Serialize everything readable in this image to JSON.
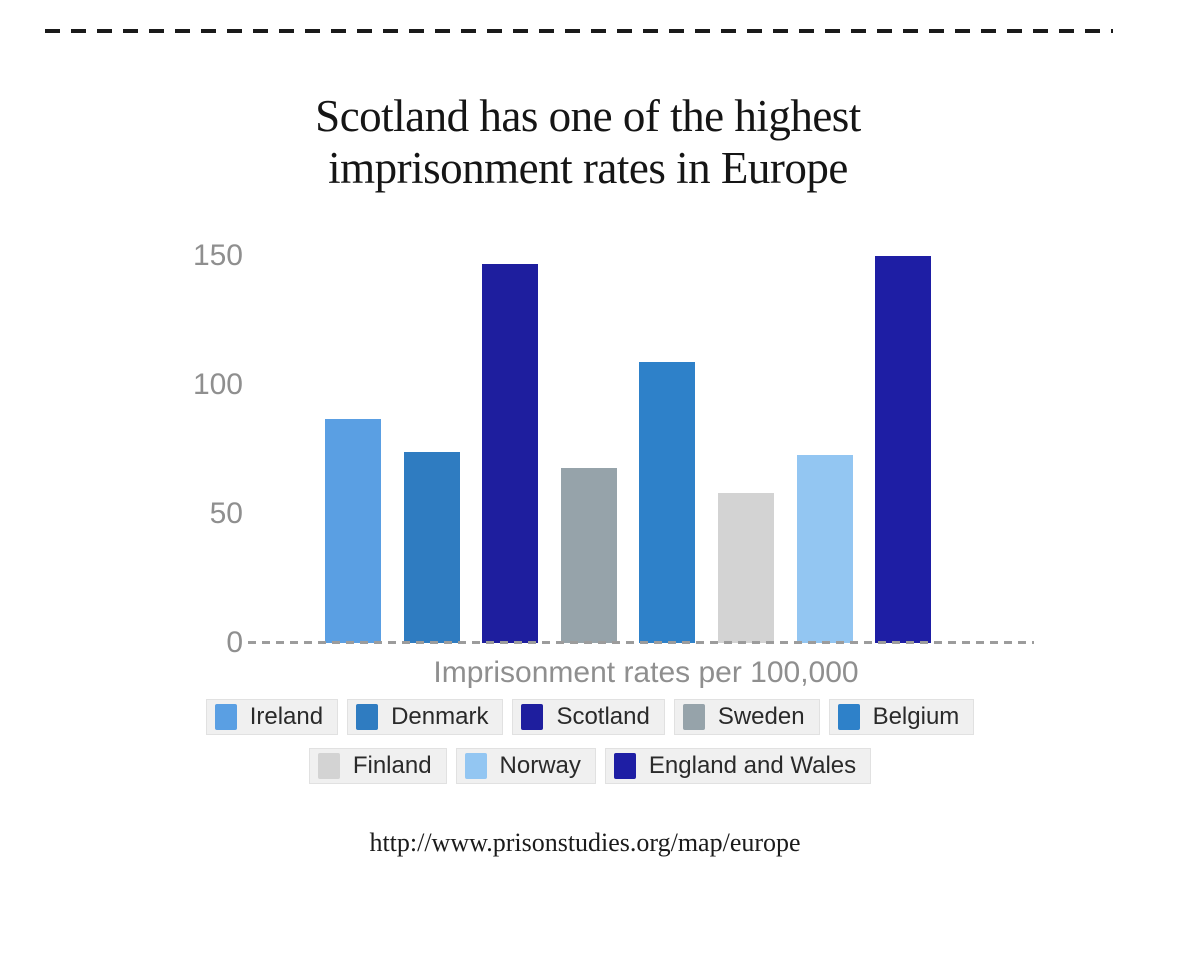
{
  "page": {
    "background": "#ffffff",
    "top_divider_color": "#1a1a1a"
  },
  "header": {
    "title_line1": "Scotland has one of the highest",
    "title_line2": "imprisonment rates in Europe"
  },
  "chart_data": {
    "type": "bar",
    "title": "Scotland has one of the highest imprisonment rates in Europe",
    "categories": [
      "Ireland",
      "Denmark",
      "Scotland",
      "Sweden",
      "Belgium",
      "Finland",
      "Norway",
      "England and Wales"
    ],
    "values": [
      87,
      74,
      147,
      68,
      109,
      58,
      73,
      150
    ],
    "colors": [
      "#5a9fe3",
      "#2f7cc1",
      "#1e1e9e",
      "#96a3aa",
      "#2e81c9",
      "#d3d3d3",
      "#93c6f2",
      "#1e1ea4"
    ],
    "xlabel": "Imprisonment rates per 100,000",
    "ylabel": "",
    "yticks": [
      0,
      50,
      100,
      150
    ],
    "ylim": [
      0,
      155
    ],
    "grid": false,
    "legend_position": "bottom",
    "legend_rows": [
      5,
      3
    ],
    "axis_text_color": "#8f8f8f",
    "baseline_dash_color": "#9c9c9c"
  },
  "footer": {
    "source_url": "http://www.prisonstudies.org/map/europe"
  }
}
